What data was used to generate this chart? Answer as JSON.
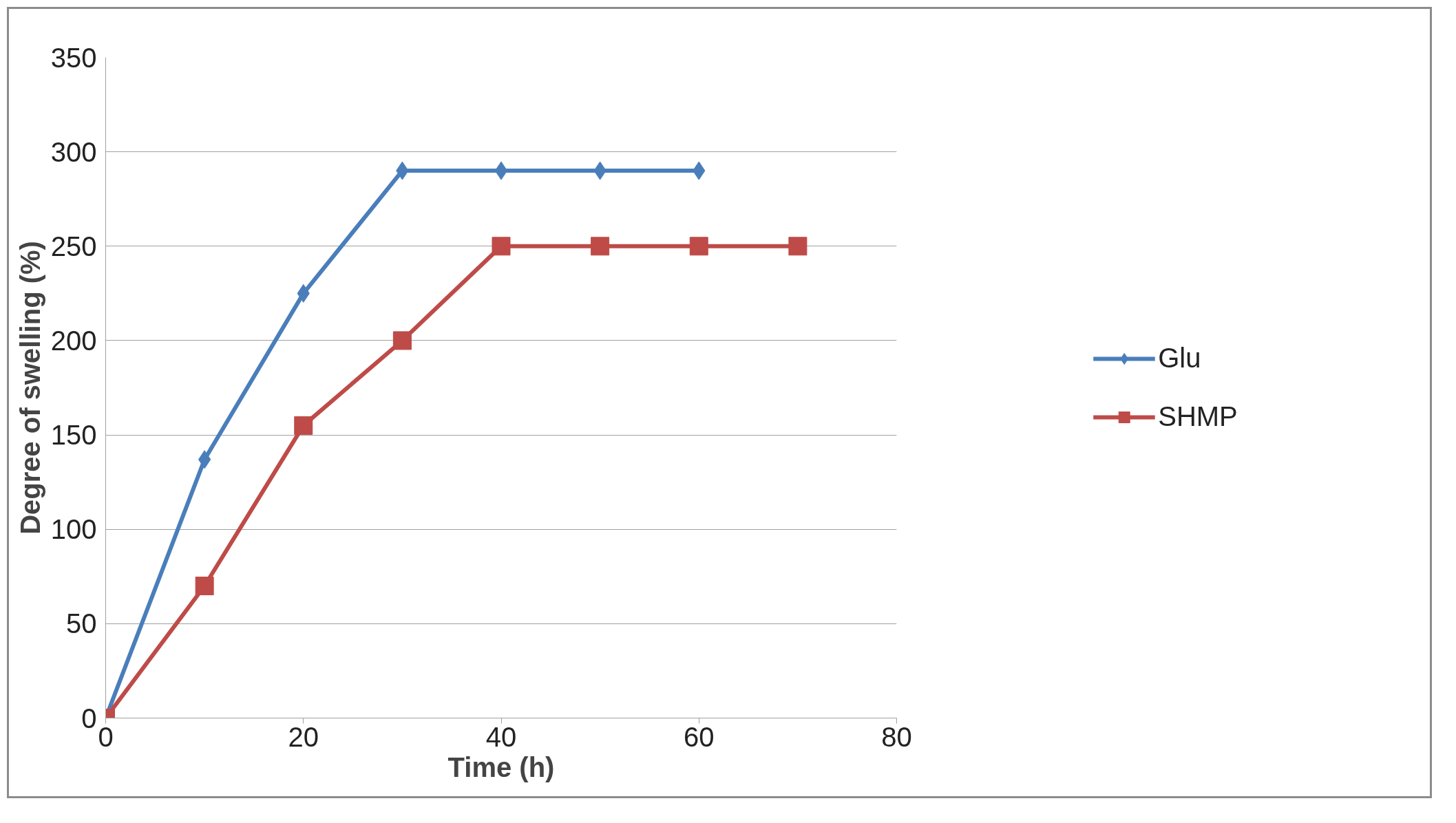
{
  "chart_data": {
    "type": "line",
    "xlabel": "Time (h)",
    "ylabel": "Degree of swelling (%)",
    "series": [
      {
        "name": "Glu",
        "color": "#4a7ebb",
        "marker": "diamond",
        "x": [
          0,
          10,
          20,
          30,
          40,
          50,
          60
        ],
        "values": [
          0,
          137,
          225,
          290,
          290,
          290,
          290
        ]
      },
      {
        "name": "SHMP",
        "color": "#be4b48",
        "marker": "square",
        "x": [
          0,
          10,
          20,
          30,
          40,
          50,
          60,
          70
        ],
        "values": [
          0,
          70,
          155,
          200,
          250,
          250,
          250,
          250
        ]
      }
    ],
    "xlim": [
      0,
      80
    ],
    "xticks": [
      0,
      20,
      40,
      60,
      80
    ],
    "ylim": [
      0,
      350
    ],
    "yticks": [
      0,
      50,
      100,
      150,
      200,
      250,
      300,
      350
    ],
    "grid": "y",
    "legend": "right",
    "line_style": "solid"
  }
}
